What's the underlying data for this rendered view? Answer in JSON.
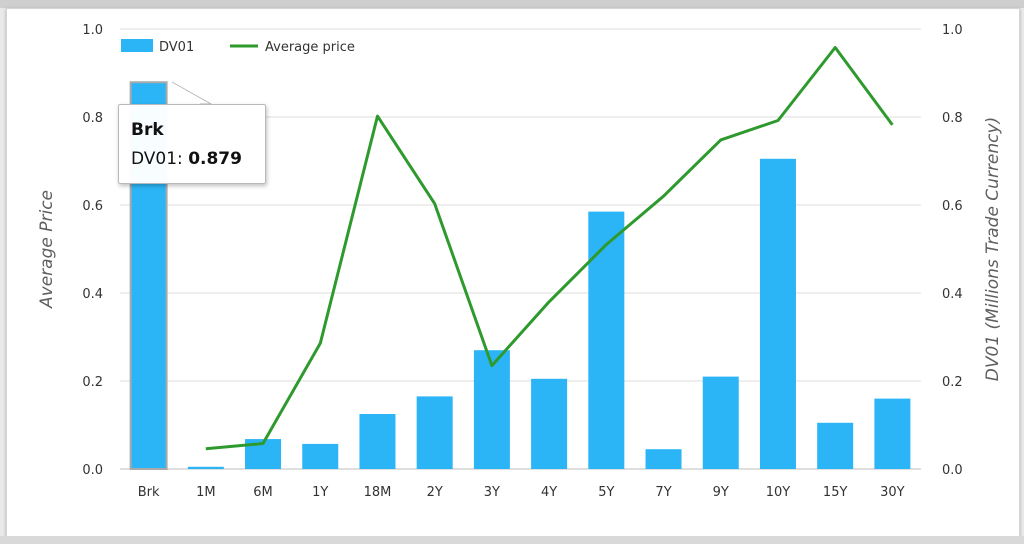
{
  "chart_data": {
    "type": "bar",
    "categories": [
      "Brk",
      "1M",
      "6M",
      "1Y",
      "18M",
      "2Y",
      "3Y",
      "4Y",
      "5Y",
      "7Y",
      "9Y",
      "10Y",
      "15Y",
      "30Y"
    ],
    "series": [
      {
        "name": "DV01",
        "type": "bar",
        "axis": "right",
        "color": "#2bb5f6",
        "values": [
          0.879,
          0.005,
          0.068,
          0.057,
          0.125,
          0.165,
          0.27,
          0.205,
          0.585,
          0.045,
          0.21,
          0.705,
          0.105,
          0.16
        ]
      },
      {
        "name": "Average price",
        "type": "line",
        "axis": "left",
        "color": "#2e9a2e",
        "values": [
          null,
          0.046,
          0.058,
          0.286,
          0.802,
          0.603,
          0.235,
          0.38,
          0.51,
          0.62,
          0.748,
          0.792,
          0.958,
          0.782
        ]
      }
    ],
    "ylabel": "Average Price",
    "y2label": "DV01 (Millions Trade Currency)",
    "ylim": [
      0,
      1
    ],
    "y2lim": [
      0,
      1
    ],
    "yticks": [
      "0.0",
      "0.2",
      "0.4",
      "0.6",
      "0.8",
      "1.0"
    ],
    "y2ticks": [
      "0.0",
      "0.2",
      "0.4",
      "0.6",
      "0.8",
      "1.0"
    ],
    "grid": true,
    "legend": "top-left"
  },
  "legend": {
    "bar_label": "DV01",
    "line_label": "Average price"
  },
  "tooltip": {
    "category": "Brk",
    "series_label": "DV01: ",
    "value": "0.879"
  },
  "axes": {
    "left_title": "Average Price",
    "right_title": "DV01 (Millions Trade Currency)"
  }
}
